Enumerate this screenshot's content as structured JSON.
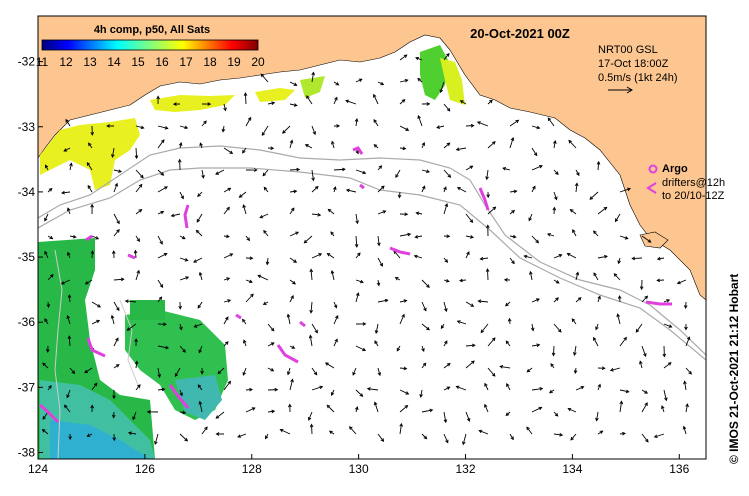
{
  "date_title": "20-Oct-2021 00Z",
  "colorbar": {
    "title": "4h comp, p50, All Sats",
    "ticks": [
      "11",
      "12",
      "13",
      "14",
      "15",
      "16",
      "17",
      "18",
      "19",
      "20"
    ],
    "min": 11,
    "max": 20
  },
  "current_legend": {
    "line1": "NRT00 GSL",
    "line2": "17-Oct 18:00Z",
    "line3": "0.5m/s (1kt 24h)"
  },
  "argo_legend": {
    "argo_label": "Argo",
    "drifters_line1": "drifters@12h",
    "drifters_line2": "to 20/10-12Z"
  },
  "side_credit": "© IMOS 21-Oct-2021 21:12 Hobart",
  "axes": {
    "x_ticks": [
      124,
      126,
      128,
      130,
      132,
      134,
      136
    ],
    "y_ticks": [
      -32,
      -33,
      -34,
      -35,
      -36,
      -37,
      -38
    ],
    "xlim": [
      124,
      136.5
    ],
    "ylim": [
      -38.1,
      -31.3
    ]
  },
  "colors": {
    "land": "#fdc690",
    "ocean": "#ffffff",
    "isobath": "#aaaaaa",
    "argo": "#e040e0",
    "arrow": "#000000"
  }
}
